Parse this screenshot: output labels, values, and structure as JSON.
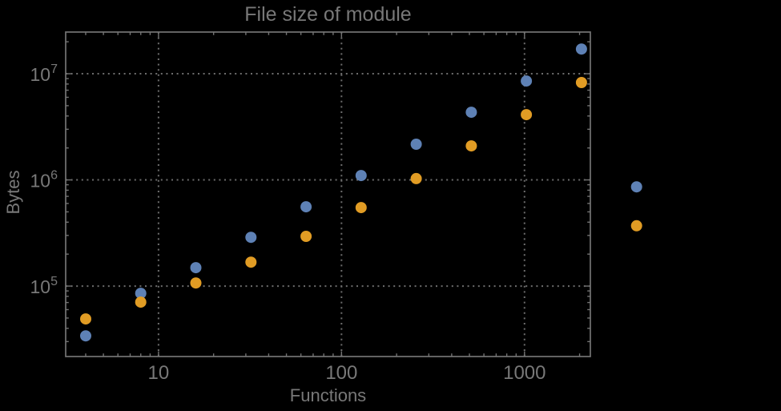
{
  "background_color": "#000000",
  "text_color": "#787878",
  "frame_color": "#747474",
  "grid_color": "#6d6d6d",
  "chart_data": {
    "type": "scatter",
    "title": "File size of module",
    "xlabel": "Functions",
    "ylabel": "Bytes",
    "x_scale": "log",
    "y_scale": "log",
    "grid": "dotted-at-decades",
    "legend": "none",
    "xlim": [
      3.11,
      2290
    ],
    "ylim": [
      21700,
      24700000
    ],
    "x_ticks": [
      {
        "value": 10,
        "label": "10"
      },
      {
        "value": 100,
        "label": "100"
      },
      {
        "value": 1000,
        "label": "1000"
      }
    ],
    "y_ticks": [
      {
        "value": 100000,
        "mantissa": "10",
        "exponent": "5"
      },
      {
        "value": 1000000,
        "mantissa": "10",
        "exponent": "6"
      },
      {
        "value": 10000000,
        "mantissa": "10",
        "exponent": "7"
      }
    ],
    "x": [
      4,
      8,
      16,
      32,
      64,
      128,
      256,
      512,
      1024,
      2048,
      4096
    ],
    "series": [
      {
        "name": "series-1-blue",
        "color": "#5E81B5",
        "values": [
          34000,
          85500,
          149000,
          288000,
          558000,
          1100000,
          2170000,
          4340000,
          8550000,
          17100000,
          860000
        ]
      },
      {
        "name": "series-2-orange",
        "color": "#E19C24",
        "values": [
          49000,
          70600,
          107000,
          168000,
          294000,
          549000,
          1030000,
          2090000,
          4120000,
          8260000,
          370000
        ]
      }
    ]
  }
}
